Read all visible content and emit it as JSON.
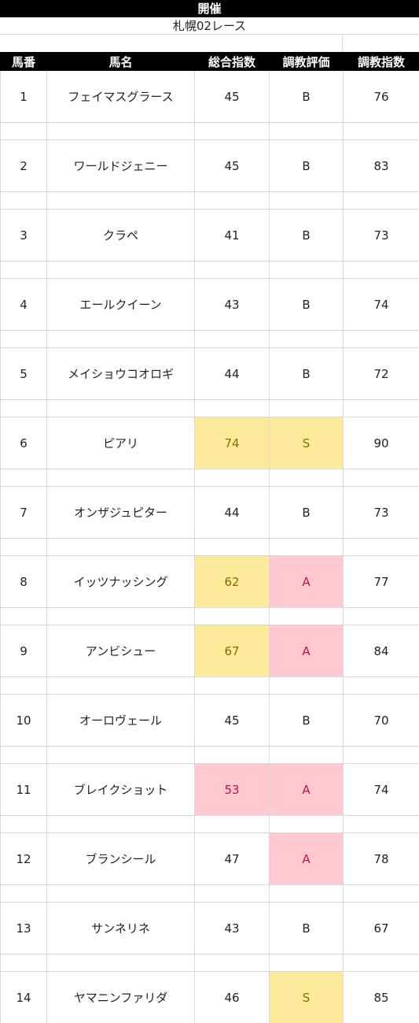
{
  "header": {
    "title": "開催",
    "race_name": "札幌02レース"
  },
  "table": {
    "columns": [
      "馬番",
      "馬名",
      "総合指数",
      "調教評価",
      "調教指数"
    ],
    "rows": [
      {
        "num": "1",
        "name": "フェイマスグラース",
        "total": "45",
        "eval": "B",
        "train": "76",
        "total_hl": "",
        "eval_hl": ""
      },
      {
        "num": "2",
        "name": "ワールドジェニー",
        "total": "45",
        "eval": "B",
        "train": "83",
        "total_hl": "",
        "eval_hl": ""
      },
      {
        "num": "3",
        "name": "クラペ",
        "total": "41",
        "eval": "B",
        "train": "73",
        "total_hl": "",
        "eval_hl": ""
      },
      {
        "num": "4",
        "name": "エールクイーン",
        "total": "43",
        "eval": "B",
        "train": "74",
        "total_hl": "",
        "eval_hl": ""
      },
      {
        "num": "5",
        "name": "メイショウコオロギ",
        "total": "44",
        "eval": "B",
        "train": "72",
        "total_hl": "",
        "eval_hl": ""
      },
      {
        "num": "6",
        "name": "ピアリ",
        "total": "74",
        "eval": "S",
        "train": "90",
        "total_hl": "yellow",
        "eval_hl": "yellow"
      },
      {
        "num": "7",
        "name": "オンザジュピター",
        "total": "44",
        "eval": "B",
        "train": "73",
        "total_hl": "",
        "eval_hl": ""
      },
      {
        "num": "8",
        "name": "イッツナッシング",
        "total": "62",
        "eval": "A",
        "train": "77",
        "total_hl": "yellow",
        "eval_hl": "pink"
      },
      {
        "num": "9",
        "name": "アンビシュー",
        "total": "67",
        "eval": "A",
        "train": "84",
        "total_hl": "yellow",
        "eval_hl": "pink"
      },
      {
        "num": "10",
        "name": "オーロヴェール",
        "total": "45",
        "eval": "B",
        "train": "70",
        "total_hl": "",
        "eval_hl": ""
      },
      {
        "num": "11",
        "name": "ブレイクショット",
        "total": "53",
        "eval": "A",
        "train": "74",
        "total_hl": "pink",
        "eval_hl": "pink"
      },
      {
        "num": "12",
        "name": "ブランシール",
        "total": "47",
        "eval": "A",
        "train": "78",
        "total_hl": "",
        "eval_hl": "pink"
      },
      {
        "num": "13",
        "name": "サンネリネ",
        "total": "43",
        "eval": "B",
        "train": "67",
        "total_hl": "",
        "eval_hl": ""
      },
      {
        "num": "14",
        "name": "ヤマニンファリダ",
        "total": "46",
        "eval": "S",
        "train": "85",
        "total_hl": "",
        "eval_hl": "yellow"
      }
    ]
  },
  "colors": {
    "header_bg": "#000000",
    "highlight_yellow": "#fde99a",
    "highlight_pink": "#fdc8cf",
    "grid_line": "#d9d9d9"
  }
}
